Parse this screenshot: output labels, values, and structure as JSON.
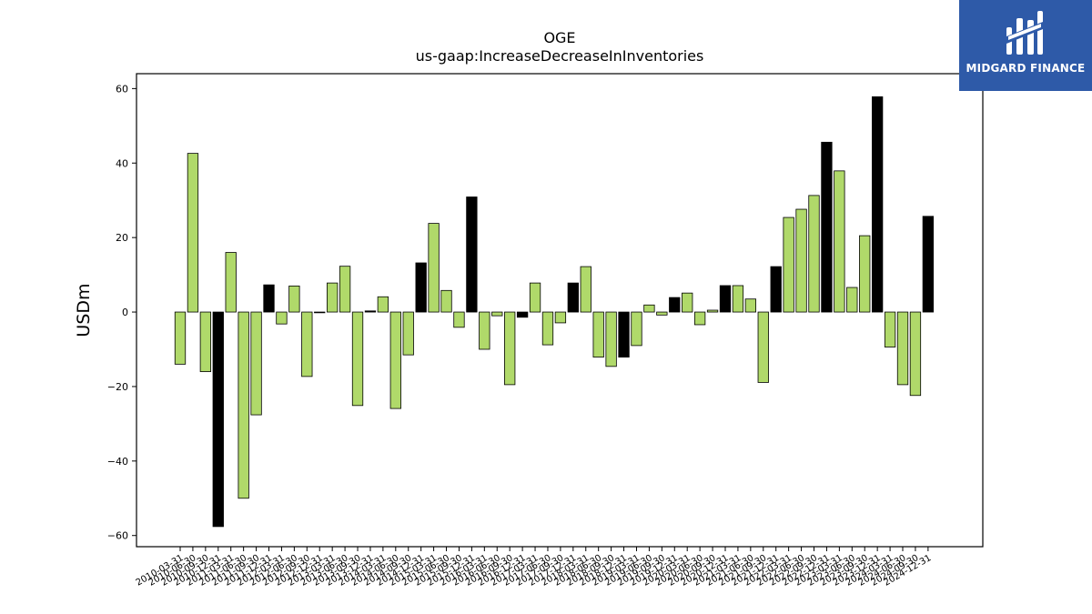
{
  "chart_data": {
    "type": "bar",
    "title": "OGE",
    "subtitle": "us-gaap:IncreaseDecreaseInInventories",
    "xlabel": "",
    "ylabel": "USDm",
    "ylim": [
      -63,
      64
    ],
    "yticks": [
      -60,
      -40,
      -20,
      0,
      20,
      40,
      60
    ],
    "grid": false,
    "colors": {
      "quarter": "#b0d96a",
      "year_end": "#000000",
      "edge": "#000000"
    },
    "categories": [
      "2010-03-31",
      "2010-06-30",
      "2010-09-30",
      "2010-12-31",
      "2011-03-31",
      "2011-06-30",
      "2011-09-30",
      "2011-12-31",
      "2012-03-31",
      "2012-06-30",
      "2012-09-30",
      "2012-12-31",
      "2013-03-31",
      "2013-06-30",
      "2013-09-30",
      "2013-12-31",
      "2014-03-31",
      "2014-06-30",
      "2014-09-30",
      "2014-12-31",
      "2015-03-31",
      "2015-06-30",
      "2015-09-30",
      "2015-12-31",
      "2016-03-31",
      "2016-06-30",
      "2016-09-30",
      "2016-12-31",
      "2017-03-31",
      "2017-06-30",
      "2017-09-30",
      "2017-12-31",
      "2018-03-31",
      "2018-06-30",
      "2018-09-30",
      "2018-12-31",
      "2019-03-31",
      "2019-06-30",
      "2019-09-30",
      "2019-12-31",
      "2020-03-31",
      "2020-06-30",
      "2020-09-30",
      "2020-12-31",
      "2021-03-31",
      "2021-06-30",
      "2021-09-30",
      "2021-12-31",
      "2022-03-31",
      "2022-06-30",
      "2022-09-30",
      "2022-12-31",
      "2023-03-31",
      "2023-06-30",
      "2023-09-30",
      "2023-12-31",
      "2024-03-31",
      "2024-06-30",
      "2024-09-30",
      "2024-12-31"
    ],
    "values": [
      -14,
      42.6,
      -16,
      -57.6,
      16,
      -50,
      -27.6,
      7.3,
      -3.2,
      7,
      -17.3,
      0,
      7.8,
      12.3,
      -25.1,
      0.3,
      4.1,
      -25.9,
      -11.5,
      13.2,
      23.8,
      5.8,
      -4.1,
      30.9,
      -10,
      -1,
      -19.5,
      -1.4,
      7.8,
      -8.8,
      -2.9,
      7.8,
      12.2,
      -12.1,
      -14.6,
      -12.1,
      -9,
      1.9,
      -0.8,
      3.9,
      5.1,
      -3.4,
      0.5,
      7.1,
      7.1,
      3.5,
      -18.9,
      12.2,
      25.4,
      27.6,
      31.3,
      45.6,
      37.9,
      6.6,
      20.5,
      57.8,
      -9.4,
      -19.5,
      -22.4,
      25.7
    ],
    "highlight_year_end": true
  },
  "logo": {
    "text": "MIDGARD FINANCE",
    "icon": "midgard-logo-icon"
  }
}
